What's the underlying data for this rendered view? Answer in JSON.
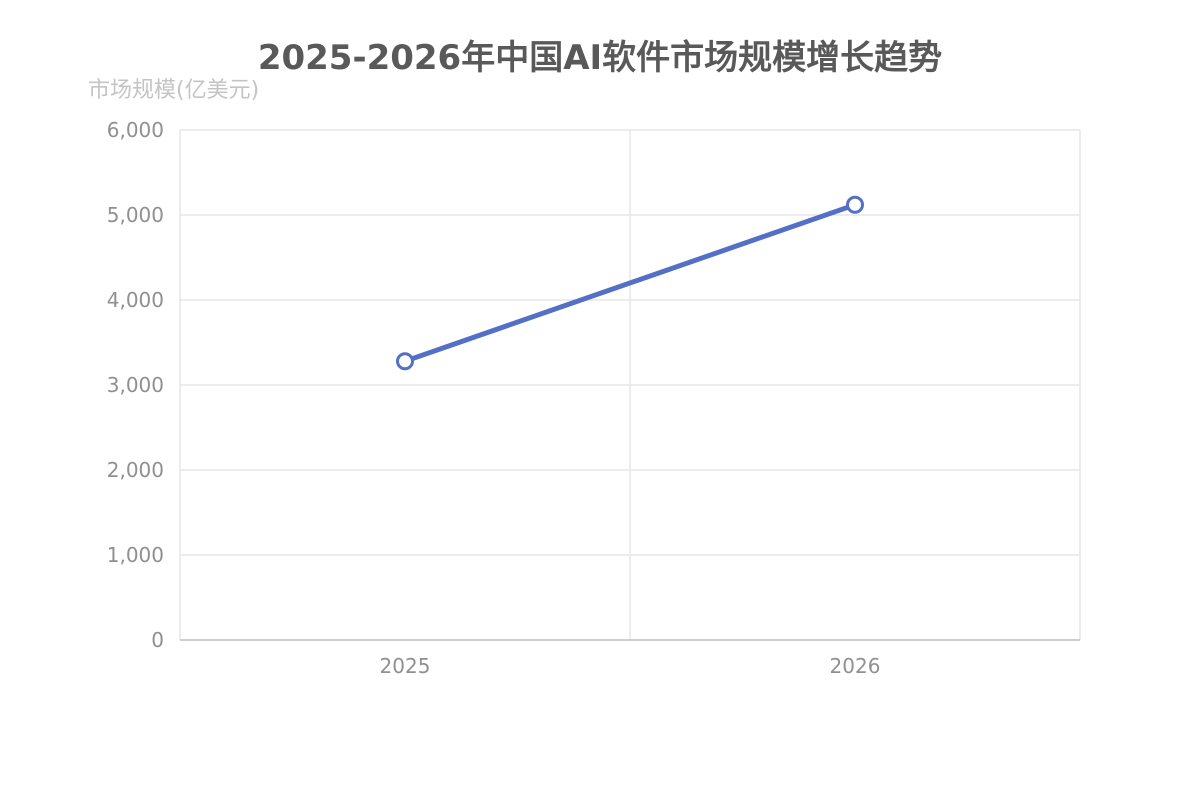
{
  "chart_data": {
    "type": "line",
    "title": "2025-2026年中国AI软件市场规模增长趋势",
    "ylabel": "市场规模(亿美元)",
    "xlabel": "",
    "categories": [
      "2025",
      "2026"
    ],
    "series": [
      {
        "values": [
          3280,
          5120
        ]
      }
    ],
    "ylim": [
      0,
      6000
    ],
    "yticks": [
      0,
      1000,
      2000,
      3000,
      4000,
      5000,
      6000
    ],
    "ytick_labels": [
      "0",
      "1,000",
      "2,000",
      "3,000",
      "4,000",
      "5,000",
      "6,000"
    ],
    "grid": true,
    "legend": "none"
  },
  "colors": {
    "series": "#5470c6",
    "grid": "#e6e6e6",
    "axis": "#bfbfbf",
    "tick_text": "#909090",
    "title": "#595959",
    "ylabel": "#c4c4c4"
  }
}
